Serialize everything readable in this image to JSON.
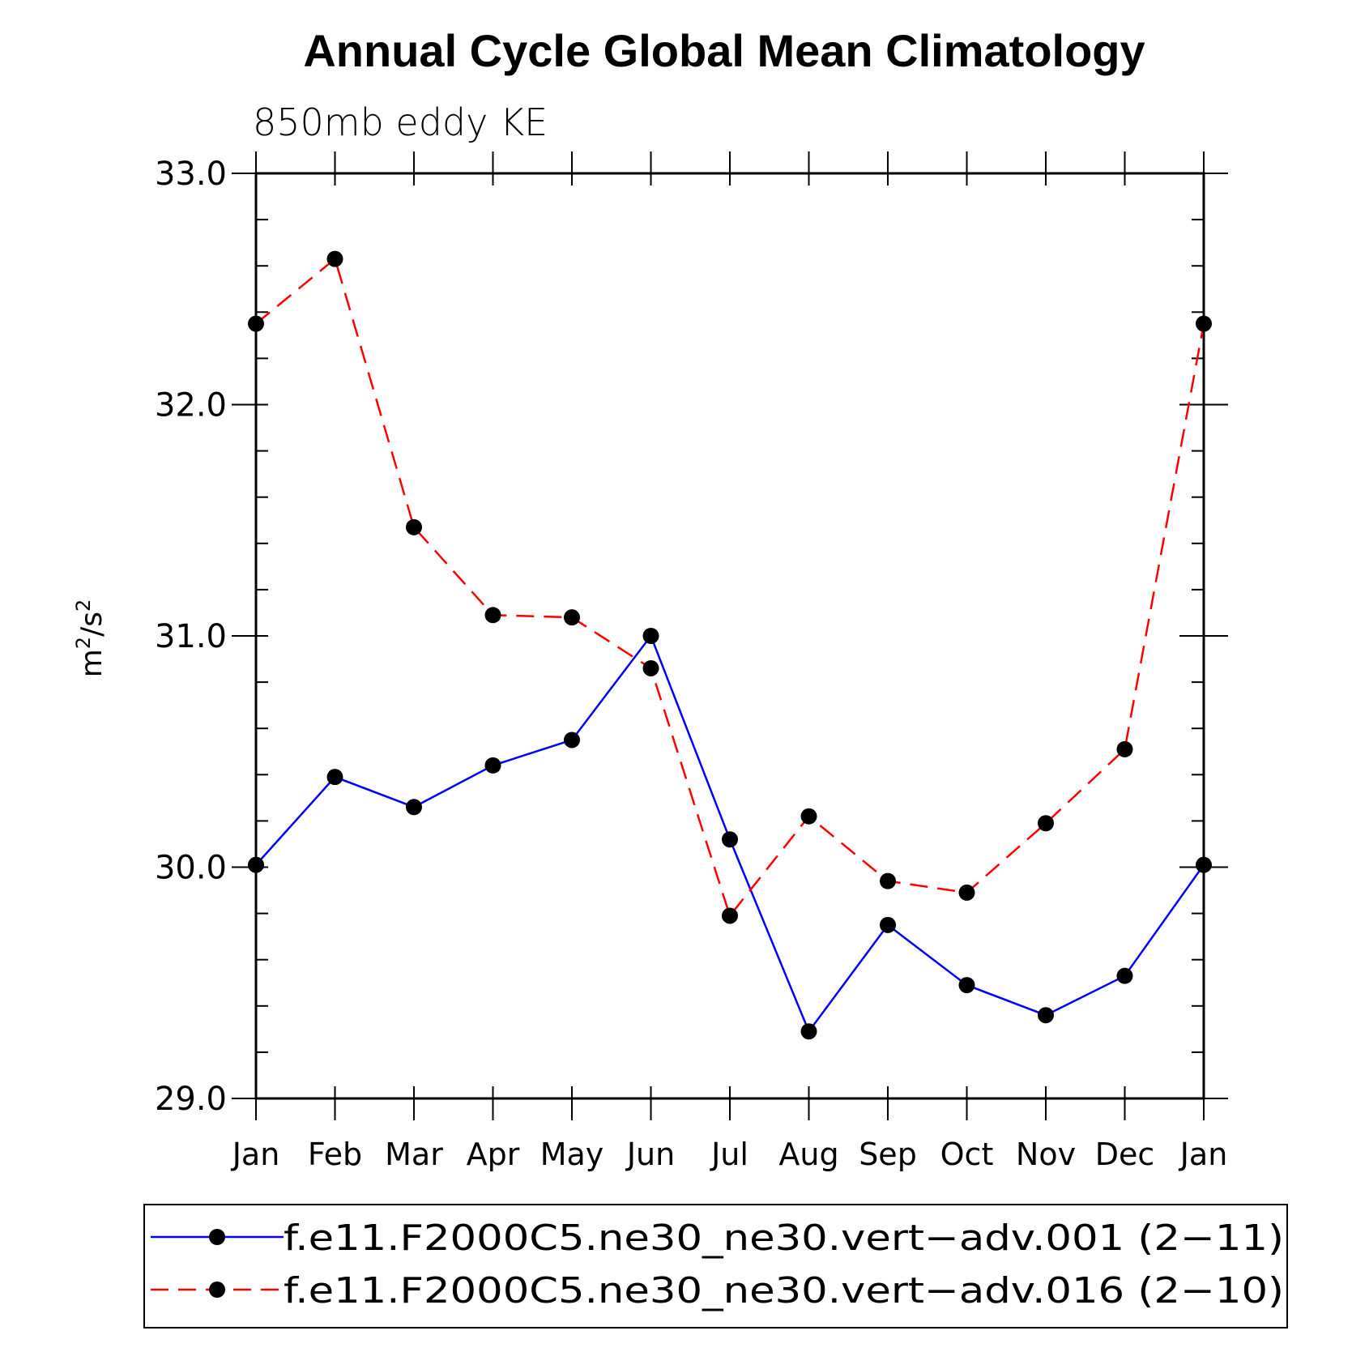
{
  "chart_data": {
    "type": "line",
    "title": "Annual Cycle Global Mean Climatology",
    "subtitle": "850mb eddy KE",
    "xlabel": "",
    "ylabel": "m²/s²",
    "ylabel_parts": {
      "base1": "m",
      "sup1": "2",
      "sep": "/s",
      "sup2": "2"
    },
    "ylim": [
      29.0,
      33.0
    ],
    "yticks": [
      29.0,
      30.0,
      31.0,
      32.0,
      33.0
    ],
    "ytick_labels": [
      "29.0",
      "30.0",
      "31.0",
      "32.0",
      "33.0"
    ],
    "categories": [
      "Jan",
      "Feb",
      "Mar",
      "Apr",
      "May",
      "Jun",
      "Jul",
      "Aug",
      "Sep",
      "Oct",
      "Nov",
      "Dec",
      "Jan"
    ],
    "series": [
      {
        "name": "f.e11.F2000C5.ne30_ne30.vert−adv.001 (2−11)",
        "color": "#0000ff",
        "style": "solid",
        "values": [
          30.01,
          30.39,
          30.26,
          30.44,
          30.55,
          31.0,
          30.12,
          29.29,
          29.75,
          29.49,
          29.36,
          29.53,
          30.01
        ]
      },
      {
        "name": "f.e11.F2000C5.ne30_ne30.vert−adv.016 (2−10)",
        "color": "#ff0000",
        "style": "dashed",
        "values": [
          32.35,
          32.63,
          31.47,
          31.09,
          31.08,
          30.86,
          29.79,
          30.22,
          29.94,
          29.89,
          30.19,
          30.51,
          32.35
        ]
      }
    ],
    "marker": "filled-circle",
    "marker_color": "#000000",
    "legend_position": "bottom"
  }
}
